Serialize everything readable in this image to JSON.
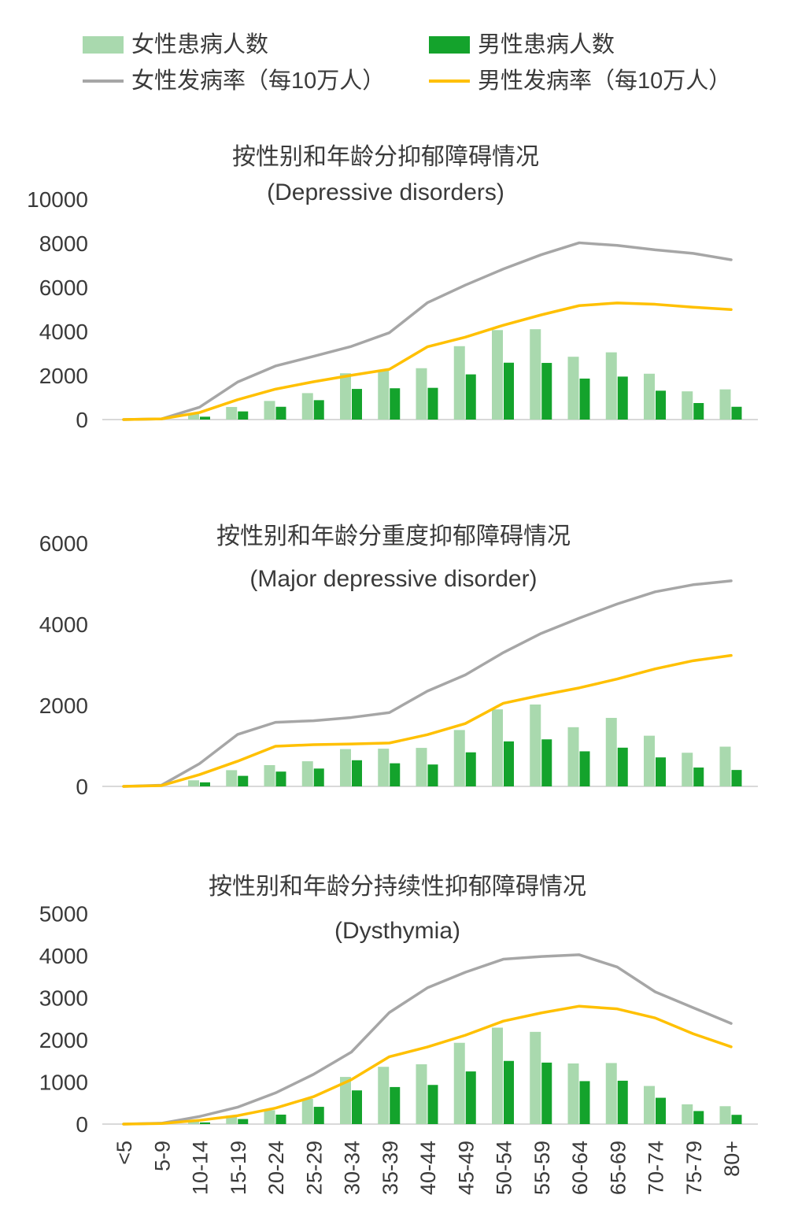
{
  "colors": {
    "female_cases_bar": "#a9d9ae",
    "male_cases_bar": "#14a32c",
    "female_rate_line": "#a6a6a6",
    "male_rate_line": "#ffc000",
    "axis_line": "#d9d9d9",
    "text": "#3a3a3a",
    "background": "#ffffff"
  },
  "legend": {
    "female_cases_label": "女性患病人数",
    "male_cases_label": "男性患病人数",
    "female_rate_label": "女性发病率（每10万人）",
    "male_rate_label": "男性发病率（每10万人）"
  },
  "chart_data": {
    "type": "bar+line combo, 3 stacked panels sharing one category axis",
    "categories": [
      "<5",
      "5-9",
      "10-14",
      "15-19",
      "20-24",
      "25-29",
      "30-34",
      "35-39",
      "40-44",
      "45-49",
      "50-54",
      "55-59",
      "60-64",
      "65-69",
      "70-74",
      "75-79",
      "80+"
    ],
    "legend": [
      {
        "name": "女性患病人数",
        "type": "bar",
        "color": "#a9d9ae"
      },
      {
        "name": "男性患病人数",
        "type": "bar",
        "color": "#14a32c"
      },
      {
        "name": "女性发病率（每10万人）",
        "type": "line",
        "color": "#a6a6a6"
      },
      {
        "name": "男性发病率（每10万人）",
        "type": "line",
        "color": "#ffc000"
      }
    ],
    "charts": [
      {
        "title": "按性别和年龄分抑郁障碍情况",
        "subtitle": "(Depressive disorders)",
        "ylim": [
          0,
          10000
        ],
        "ytick_step": 2000,
        "yticks": [
          0,
          2000,
          4000,
          6000,
          8000,
          10000
        ],
        "grid": false,
        "series": {
          "female_cases": [
            0,
            0,
            260,
            570,
            845,
            1200,
            2100,
            2260,
            2330,
            3330,
            4060,
            4100,
            2850,
            3050,
            2080,
            1280,
            1370
          ],
          "male_cases": [
            0,
            0,
            130,
            370,
            580,
            880,
            1390,
            1420,
            1440,
            2050,
            2580,
            2570,
            1860,
            1950,
            1310,
            750,
            580
          ],
          "female_rate": [
            0,
            30,
            560,
            1700,
            2430,
            2870,
            3320,
            3940,
            5300,
            6100,
            6830,
            7480,
            8020,
            7900,
            7700,
            7540,
            7250
          ],
          "male_rate": [
            0,
            30,
            320,
            900,
            1380,
            1715,
            2010,
            2280,
            3300,
            3740,
            4280,
            4750,
            5170,
            5290,
            5230,
            5100,
            4990
          ]
        }
      },
      {
        "title": "按性别和年龄分重度抑郁障碍情况",
        "subtitle": "(Major depressive disorder)",
        "ylim": [
          0,
          6000
        ],
        "ytick_step": 2000,
        "yticks": [
          0,
          2000,
          4000,
          6000
        ],
        "grid": false,
        "series": {
          "female_cases": [
            0,
            0,
            150,
            400,
            525,
            620,
            920,
            930,
            950,
            1390,
            1900,
            2020,
            1460,
            1690,
            1250,
            830,
            980
          ],
          "male_cases": [
            0,
            0,
            100,
            260,
            365,
            440,
            645,
            570,
            540,
            840,
            1110,
            1160,
            865,
            955,
            715,
            465,
            405
          ],
          "female_rate": [
            0,
            30,
            560,
            1280,
            1580,
            1620,
            1700,
            1820,
            2350,
            2750,
            3300,
            3775,
            4150,
            4500,
            4800,
            4975,
            5070
          ],
          "male_rate": [
            0,
            20,
            290,
            620,
            990,
            1030,
            1045,
            1070,
            1275,
            1550,
            2050,
            2250,
            2430,
            2650,
            2900,
            3100,
            3230
          ]
        }
      },
      {
        "title": "按性别和年龄分持续性抑郁障碍情况",
        "subtitle": "(Dysthymia)",
        "ylim": [
          0,
          5000
        ],
        "ytick_step": 1000,
        "yticks": [
          0,
          1000,
          2000,
          3000,
          4000,
          5000
        ],
        "grid": false,
        "series": {
          "female_cases": [
            0,
            0,
            60,
            200,
            330,
            600,
            1120,
            1360,
            1420,
            1930,
            2290,
            2190,
            1440,
            1450,
            905,
            470,
            425
          ],
          "male_cases": [
            0,
            0,
            40,
            120,
            225,
            410,
            800,
            880,
            930,
            1250,
            1500,
            1460,
            1020,
            1030,
            625,
            310,
            220
          ],
          "female_rate": [
            0,
            20,
            180,
            400,
            740,
            1180,
            1710,
            2650,
            3235,
            3605,
            3915,
            3980,
            4020,
            3730,
            3140,
            2765,
            2390
          ],
          "male_rate": [
            0,
            15,
            90,
            200,
            380,
            650,
            1055,
            1600,
            1830,
            2110,
            2445,
            2640,
            2800,
            2735,
            2520,
            2145,
            1835
          ]
        }
      }
    ]
  }
}
